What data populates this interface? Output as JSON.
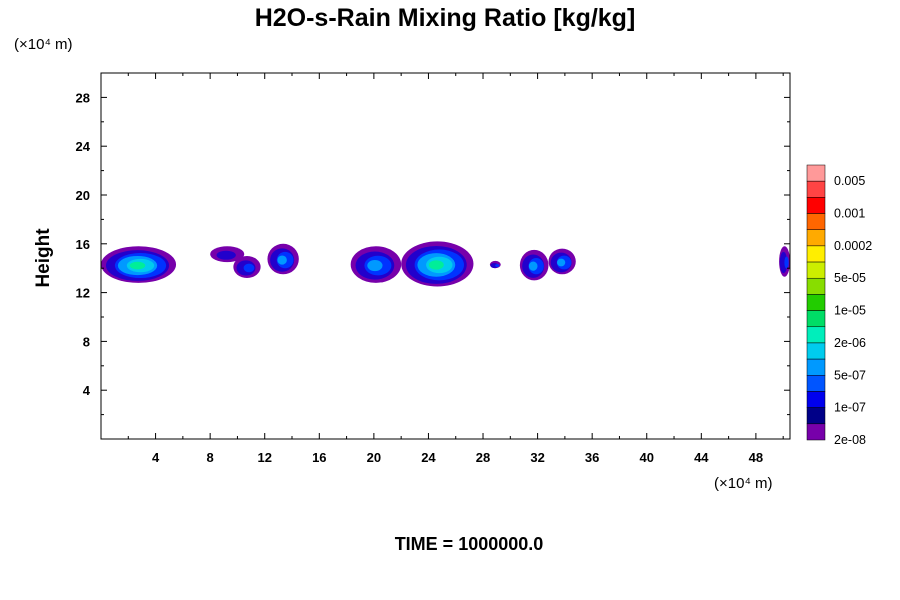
{
  "chart_data": {
    "type": "heatmap",
    "title": "H2O-s-Rain Mixing Ratio [kg/kg]",
    "xlabel": "",
    "ylabel": "Height",
    "x_unit": "(×10⁴ m)",
    "y_unit": "(×10⁴ m)",
    "xlim": [
      0,
      50.5
    ],
    "ylim": [
      0,
      30
    ],
    "x_ticks": [
      "4",
      "8",
      "12",
      "16",
      "20",
      "24",
      "28",
      "32",
      "36",
      "40",
      "44",
      "48"
    ],
    "y_ticks": [
      "4",
      "8",
      "12",
      "16",
      "20",
      "24",
      "28"
    ],
    "colorbar": {
      "labels": [
        "0.005",
        "0.001",
        "0.0002",
        "5e-05",
        "1e-05",
        "2e-06",
        "5e-07",
        "1e-07",
        "2e-08"
      ],
      "colors_top_to_bottom": [
        "#ff9999",
        "#ff4444",
        "#ff0000",
        "#ff6600",
        "#ffaa00",
        "#ffee00",
        "#ccee00",
        "#88dd00",
        "#22cc00",
        "#00dd66",
        "#00eebb",
        "#00ccee",
        "#0099ff",
        "#0055ff",
        "#0000ee",
        "#000088",
        "#7700aa"
      ]
    },
    "clouds": [
      {
        "x": [
          0,
          5.5
        ],
        "y": [
          12.8,
          15.8
        ],
        "max_level": "2e-06"
      },
      {
        "x": [
          8,
          10.5
        ],
        "y": [
          14.5,
          15.8
        ],
        "max_level": "2e-08"
      },
      {
        "x": [
          9.7,
          11.7
        ],
        "y": [
          13.2,
          15
        ],
        "max_level": "1e-07"
      },
      {
        "x": [
          12.2,
          14.5
        ],
        "y": [
          13.5,
          16
        ],
        "max_level": "5e-07"
      },
      {
        "x": [
          18.3,
          22
        ],
        "y": [
          12.8,
          15.8
        ],
        "max_level": "5e-07"
      },
      {
        "x": [
          22,
          27.3
        ],
        "y": [
          12.5,
          16.2
        ],
        "max_level": "2e-06"
      },
      {
        "x": [
          28.5,
          29.3
        ],
        "y": [
          14,
          14.6
        ],
        "max_level": "1e-07"
      },
      {
        "x": [
          30.7,
          32.8
        ],
        "y": [
          13,
          15.5
        ],
        "max_level": "5e-07"
      },
      {
        "x": [
          32.8,
          34.8
        ],
        "y": [
          13.5,
          15.6
        ],
        "max_level": "5e-07"
      },
      {
        "x": [
          49.7,
          50.5
        ],
        "y": [
          13.3,
          15.8
        ],
        "max_level": "1e-07"
      }
    ]
  },
  "footer": {
    "time_label": "TIME = 1000000.0"
  }
}
